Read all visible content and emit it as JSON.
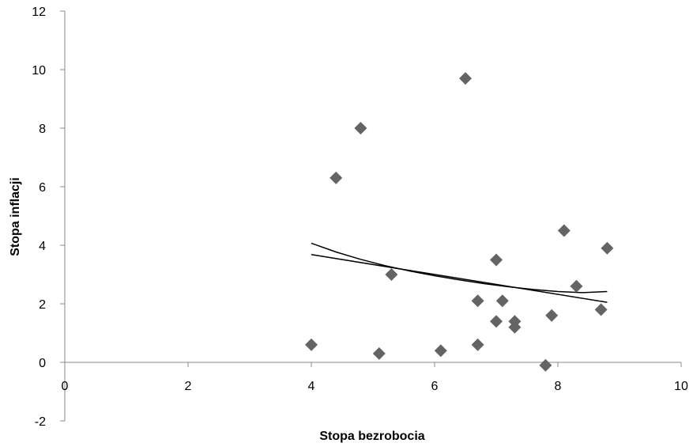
{
  "chart_data": {
    "type": "scatter",
    "title": "",
    "xlabel": "Stopa bezrobocia",
    "ylabel": "Stopa inflacji",
    "xlim": [
      0,
      10
    ],
    "ylim": [
      -2,
      12
    ],
    "x_ticks": [
      "0",
      "2",
      "4",
      "6",
      "8",
      "10"
    ],
    "y_ticks": [
      "-2",
      "0",
      "2",
      "4",
      "6",
      "8",
      "10",
      "12"
    ],
    "grid": false,
    "legend": "none",
    "marker": "diamond",
    "marker_color": "#646464",
    "line_color": "#000000",
    "series": [
      {
        "x": [
          4.0,
          4.4,
          4.8,
          5.1,
          5.3,
          6.1,
          6.5,
          6.7,
          6.7,
          7.0,
          7.0,
          7.1,
          7.3,
          7.3,
          7.8,
          7.9,
          8.1,
          8.3,
          8.7,
          8.8
        ],
        "y": [
          0.6,
          6.3,
          8.0,
          0.3,
          3.0,
          0.4,
          9.7,
          2.1,
          0.6,
          3.5,
          1.4,
          2.1,
          1.2,
          1.4,
          -0.1,
          1.6,
          4.5,
          2.6,
          1.8,
          3.9
        ]
      }
    ],
    "trendlines": [
      {
        "type": "linear",
        "x": [
          4.0,
          8.8
        ],
        "y": [
          3.68,
          2.05
        ]
      },
      {
        "type": "curve",
        "x": [
          4.0,
          4.4,
          4.8,
          5.2,
          5.6,
          6.0,
          6.4,
          6.8,
          7.2,
          7.6,
          8.0,
          8.4,
          8.8
        ],
        "y": [
          4.07,
          3.77,
          3.52,
          3.3,
          3.12,
          2.96,
          2.82,
          2.69,
          2.58,
          2.49,
          2.42,
          2.38,
          2.42
        ]
      }
    ]
  }
}
